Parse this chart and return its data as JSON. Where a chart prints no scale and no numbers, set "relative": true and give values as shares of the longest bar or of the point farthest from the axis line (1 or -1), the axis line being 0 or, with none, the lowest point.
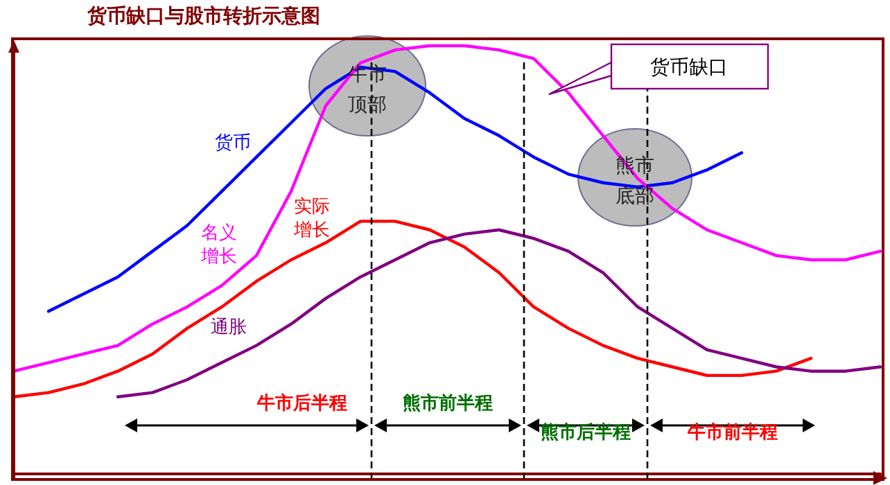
{
  "chart_data": {
    "type": "line",
    "title": "货币缺口与股市转折示意图",
    "relative": true,
    "legend": false,
    "grid": false,
    "marker": "none",
    "line_style": "solid",
    "categories": [
      null,
      null,
      null,
      null,
      null,
      null,
      null,
      null,
      null,
      null,
      null,
      null,
      null,
      null,
      null,
      null,
      null,
      null,
      null,
      null,
      null,
      null,
      null,
      null,
      null,
      null
    ],
    "series": [
      {
        "name": "货币",
        "color": "#0000ff",
        "values": [
          null,
          0.38,
          0.42,
          0.46,
          0.52,
          0.58,
          0.66,
          0.74,
          0.82,
          0.9,
          0.95,
          0.94,
          0.89,
          0.83,
          0.79,
          0.74,
          0.7,
          0.68,
          0.67,
          0.68,
          0.71,
          0.75,
          null,
          null,
          null,
          null
        ]
      },
      {
        "name": "名义增长",
        "color": "#ff00ff",
        "values": [
          0.24,
          0.26,
          0.28,
          0.3,
          0.35,
          0.39,
          0.44,
          0.51,
          0.66,
          0.86,
          0.96,
          0.99,
          1.0,
          1.0,
          0.99,
          0.97,
          0.89,
          0.79,
          0.69,
          0.62,
          0.57,
          0.54,
          0.51,
          0.5,
          0.5,
          0.52
        ]
      },
      {
        "name": "实际增长",
        "color": "#ff0000",
        "values": [
          0.18,
          0.19,
          0.21,
          0.24,
          0.28,
          0.34,
          0.39,
          0.45,
          0.5,
          0.54,
          0.59,
          0.59,
          0.57,
          0.53,
          0.47,
          0.39,
          0.34,
          0.3,
          0.27,
          0.25,
          0.23,
          0.23,
          0.24,
          0.27,
          null,
          null
        ]
      },
      {
        "name": "通胀",
        "color": "#800080",
        "values": [
          null,
          null,
          null,
          0.18,
          0.19,
          0.22,
          0.26,
          0.3,
          0.35,
          0.41,
          0.46,
          0.5,
          0.54,
          0.56,
          0.57,
          0.55,
          0.52,
          0.47,
          0.39,
          0.34,
          0.29,
          0.27,
          0.25,
          0.24,
          0.24,
          0.25
        ]
      }
    ],
    "annotations": [
      "牛市顶部",
      "熊市底部",
      "货币缺口",
      "牛市后半程",
      "熊市前半程",
      "熊市后半程",
      "牛市前半程"
    ]
  }
}
